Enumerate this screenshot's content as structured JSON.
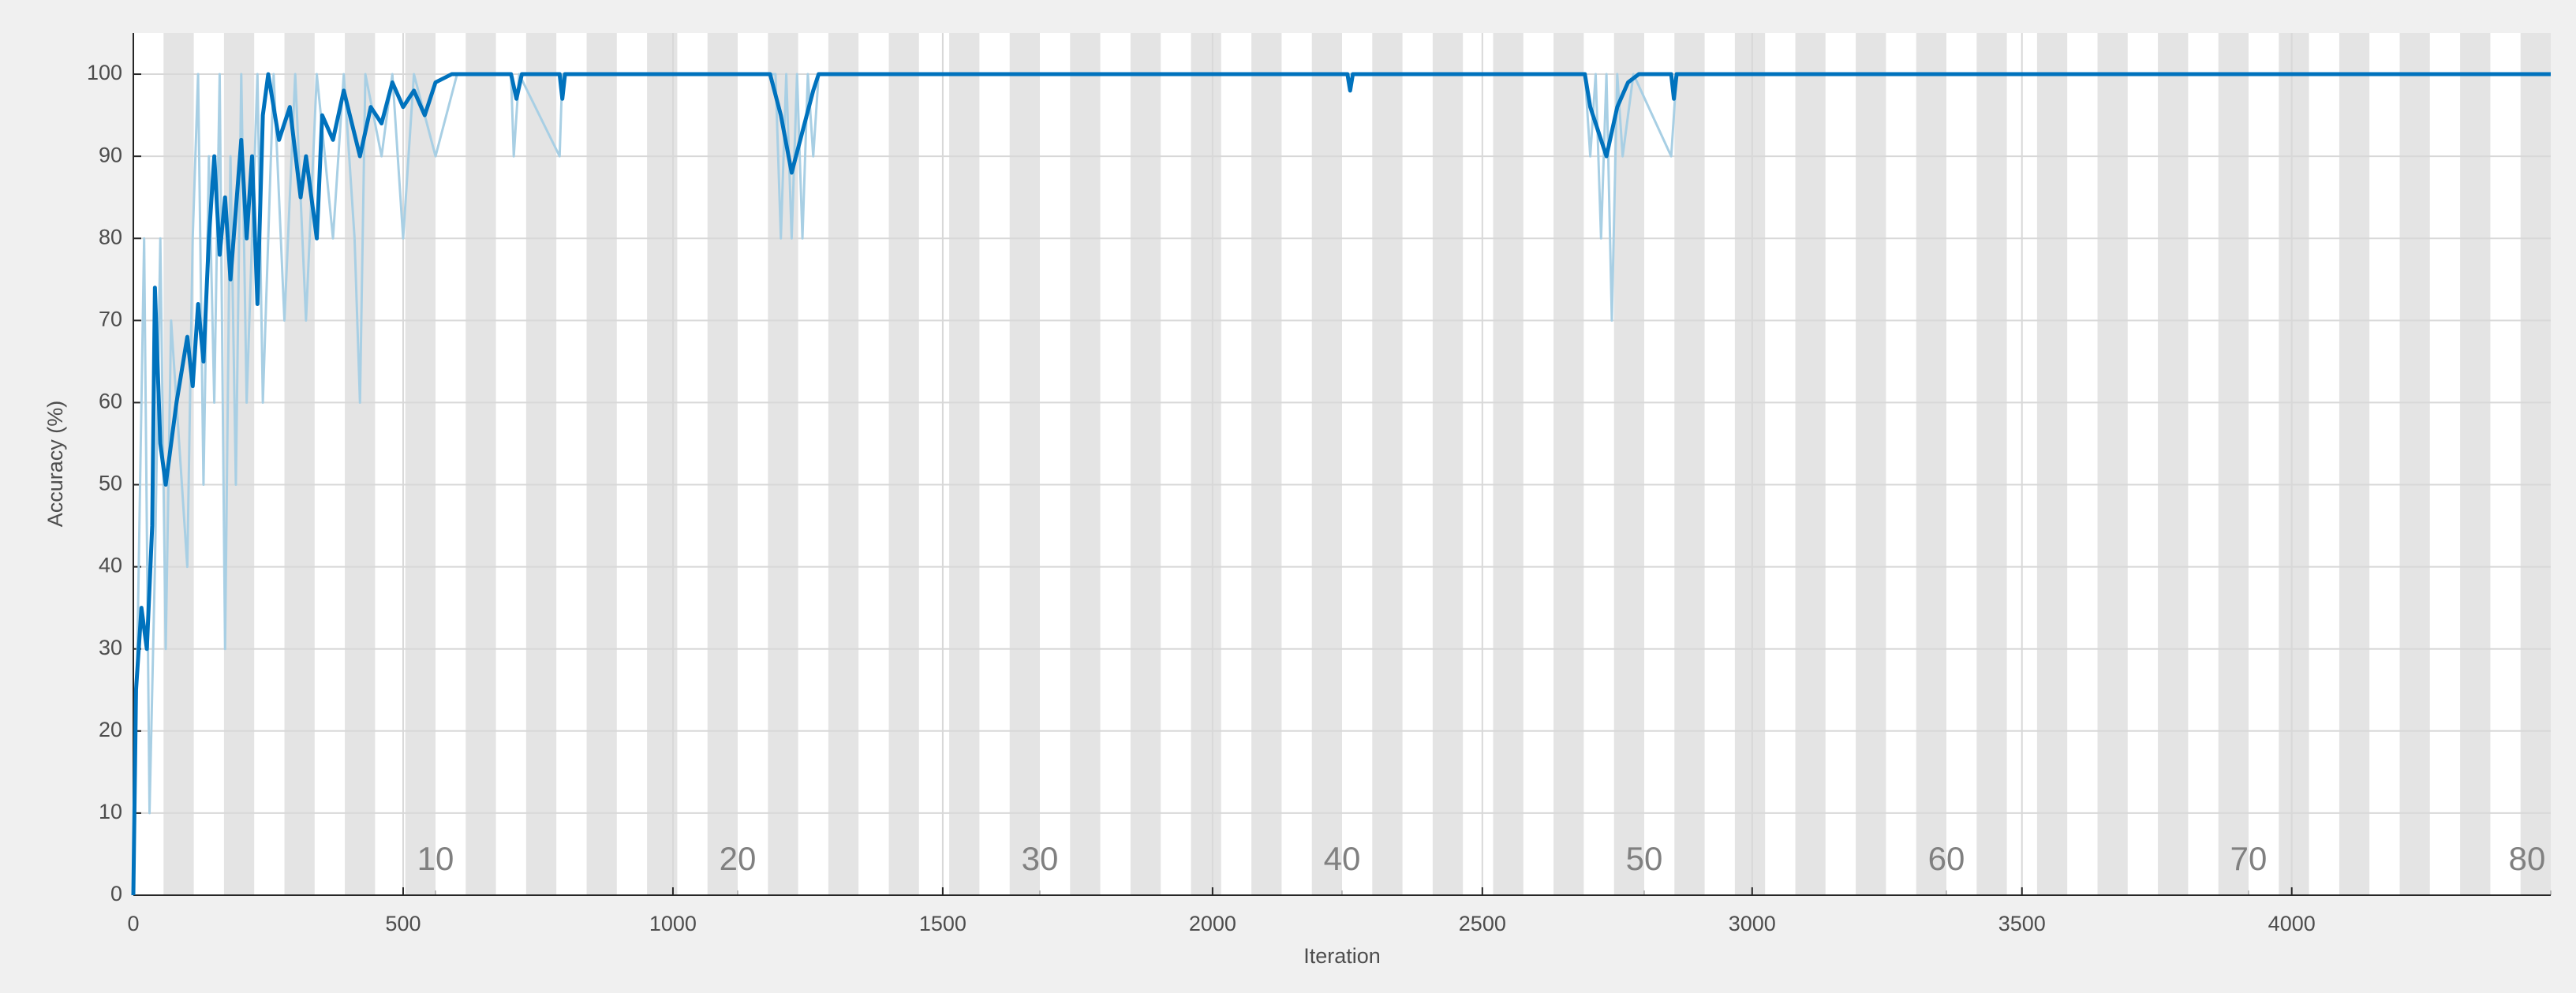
{
  "chart_data": {
    "type": "line",
    "xlabel": "Iteration",
    "ylabel": "Accuracy (%)",
    "xlim": [
      0,
      4480
    ],
    "ylim": [
      0,
      105
    ],
    "xticks": [
      0,
      500,
      1000,
      1500,
      2000,
      2500,
      3000,
      3500,
      4000
    ],
    "yticks": [
      0,
      10,
      20,
      30,
      40,
      50,
      60,
      70,
      80,
      90,
      100
    ],
    "grid": true,
    "epoch_ticks": [
      {
        "value": 560,
        "label": "10"
      },
      {
        "value": 1120,
        "label": "20"
      },
      {
        "value": 1680,
        "label": "30"
      },
      {
        "value": 2240,
        "label": "40"
      },
      {
        "value": 2800,
        "label": "50"
      },
      {
        "value": 3360,
        "label": "60"
      },
      {
        "value": 3920,
        "label": "70"
      },
      {
        "value": 4480,
        "label": "80"
      }
    ],
    "series": [
      {
        "color": "#a8cfe4",
        "x": [
          0,
          10,
          20,
          30,
          40,
          50,
          60,
          70,
          90,
          100,
          110,
          120,
          130,
          140,
          150,
          160,
          170,
          180,
          190,
          200,
          210,
          230,
          240,
          260,
          280,
          300,
          320,
          340,
          370,
          390,
          410,
          420,
          430,
          460,
          480,
          500,
          520,
          560,
          600,
          700,
          705,
          715,
          790,
          795,
          1190,
          1200,
          1210,
          1220,
          1230,
          1240,
          1250,
          1260,
          1270,
          2690,
          2700,
          2710,
          2720,
          2730,
          2740,
          2750,
          2760,
          2780,
          2850,
          2860,
          4480
        ],
        "values": [
          0,
          40,
          80,
          10,
          40,
          80,
          30,
          70,
          50,
          40,
          80,
          100,
          50,
          90,
          60,
          100,
          30,
          90,
          50,
          100,
          60,
          100,
          60,
          100,
          70,
          100,
          70,
          100,
          80,
          100,
          80,
          60,
          100,
          90,
          100,
          80,
          100,
          90,
          100,
          100,
          90,
          100,
          90,
          100,
          100,
          80,
          100,
          80,
          100,
          80,
          100,
          90,
          100,
          100,
          90,
          100,
          80,
          100,
          70,
          100,
          90,
          100,
          90,
          100,
          100
        ]
      },
      {
        "color": "#0072bd",
        "x": [
          0,
          5,
          15,
          25,
          35,
          40,
          50,
          60,
          80,
          100,
          110,
          120,
          130,
          140,
          150,
          160,
          170,
          180,
          200,
          210,
          220,
          230,
          240,
          250,
          270,
          290,
          310,
          320,
          340,
          350,
          370,
          390,
          420,
          440,
          460,
          480,
          500,
          520,
          540,
          560,
          590,
          700,
          710,
          720,
          790,
          795,
          800,
          1180,
          1200,
          1220,
          1240,
          1260,
          1270,
          2250,
          2255,
          2260,
          2690,
          2700,
          2720,
          2730,
          2750,
          2770,
          2790,
          2850,
          2855,
          2860,
          4480
        ],
        "values": [
          0,
          25,
          35,
          30,
          45,
          74,
          55,
          50,
          60,
          68,
          62,
          72,
          65,
          80,
          90,
          78,
          85,
          75,
          92,
          80,
          90,
          72,
          95,
          100,
          92,
          96,
          85,
          90,
          80,
          95,
          92,
          98,
          90,
          96,
          94,
          99,
          96,
          98,
          95,
          99,
          100,
          100,
          97,
          100,
          100,
          97,
          100,
          100,
          95,
          88,
          93,
          98,
          100,
          100,
          98,
          100,
          100,
          96,
          92,
          90,
          96,
          99,
          100,
          100,
          97,
          100,
          100
        ]
      }
    ]
  }
}
